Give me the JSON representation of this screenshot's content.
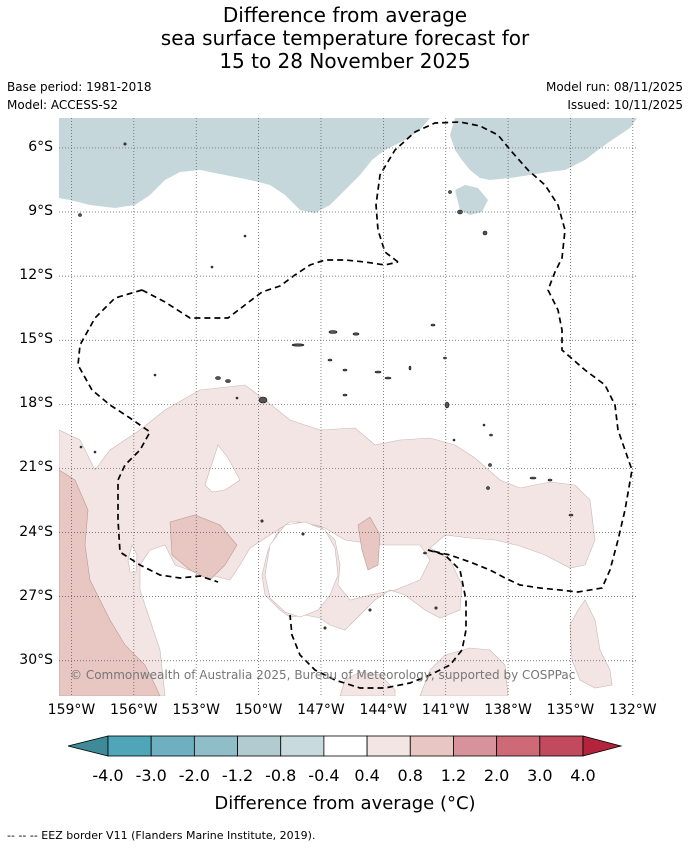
{
  "title": {
    "line1": "Difference from average",
    "line2": "sea surface temperature forecast for",
    "line3": "15 to 28 November 2025"
  },
  "meta_left": {
    "base_period": "Base period: 1981-2018",
    "model": "Model: ACCESS-S2"
  },
  "meta_right": {
    "model_run": "Model run: 08/11/2025",
    "issued": "Issued: 10/11/2025"
  },
  "map": {
    "lat_labels": [
      "6°S",
      "9°S",
      "12°S",
      "15°S",
      "18°S",
      "21°S",
      "24°S",
      "27°S",
      "30°S"
    ],
    "lon_labels": [
      "159°W",
      "156°W",
      "153°W",
      "150°W",
      "147°W",
      "144°W",
      "141°W",
      "138°W",
      "135°W",
      "132°W"
    ],
    "copyright": "© Commonwealth of Australia 2025, Bureau of Meteorology, supported by COSPPac",
    "land_color": "#c5d7db",
    "grid": "dotted"
  },
  "colorbar": {
    "ticks": [
      "-4.0",
      "-3.0",
      "-2.0",
      "-1.2",
      "-0.8",
      "-0.4",
      "0.4",
      "0.8",
      "1.2",
      "2.0",
      "3.0",
      "4.0"
    ],
    "colors": [
      "#3f8a96",
      "#4ea6b8",
      "#6eb0c0",
      "#8fbdc8",
      "#b1cbd1",
      "#c8dadd",
      "#ffffff",
      "#f3e5e4",
      "#e8c6c2",
      "#d8939a",
      "#cd6a76",
      "#c14a5e",
      "#b4233c"
    ],
    "label": "Difference from average (°C)"
  },
  "legend_note": "--  --  -- EEZ border V11 (Flanders Marine Institute, 2019)."
}
